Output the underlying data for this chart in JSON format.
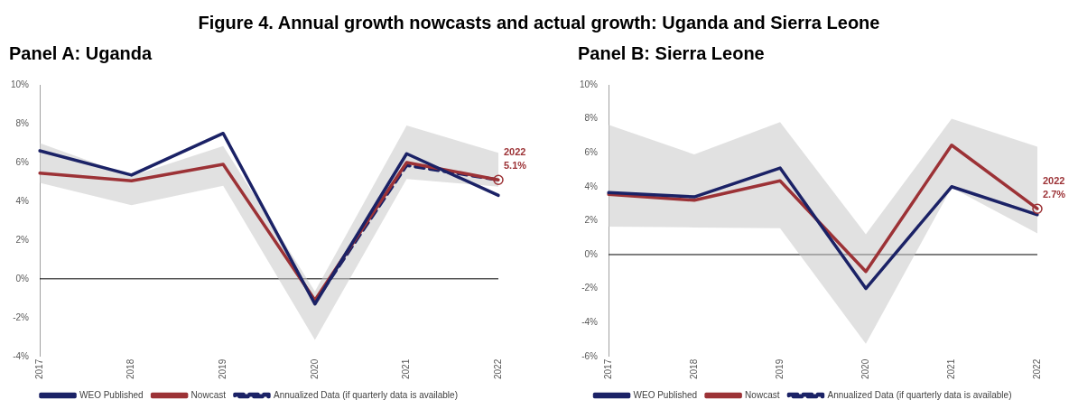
{
  "chart_data": [
    {
      "type": "line",
      "title": "Figure 4. Annual growth nowcasts and actual growth: Uganda and Sierra Leone",
      "subtitle": "Panel A: Uganda",
      "categories": [
        "2017",
        "2018",
        "2019",
        "2020",
        "2021",
        "2022"
      ],
      "series": [
        {
          "name": "WEO Published",
          "color": "#1b2266",
          "values": [
            6.6,
            5.35,
            7.5,
            -1.3,
            6.45,
            4.3
          ]
        },
        {
          "name": "Nowcast",
          "color": "#9c3236",
          "values": [
            5.45,
            5.05,
            5.9,
            -1.1,
            6.0,
            5.1
          ],
          "lower": [
            4.95,
            3.8,
            4.8,
            -3.15,
            5.15,
            4.75
          ],
          "upper": [
            7.0,
            5.3,
            6.85,
            -0.65,
            7.9,
            6.5
          ]
        },
        {
          "name": "Annualized Data (if quarterly data is available)",
          "color": "#1b2266",
          "line_style": "dashed",
          "values": [
            null,
            null,
            null,
            -1.2,
            5.85,
            5.1
          ]
        }
      ],
      "ylim": [
        -4,
        10
      ],
      "yticks": [
        {
          "value": -4,
          "label": "-4%"
        },
        {
          "value": -2,
          "label": "-2%"
        },
        {
          "value": 0,
          "label": "0%"
        },
        {
          "value": 2,
          "label": "2%"
        },
        {
          "value": 4,
          "label": "4%"
        },
        {
          "value": 6,
          "label": "6%"
        },
        {
          "value": 8,
          "label": "8%"
        },
        {
          "value": 10,
          "label": "10%"
        }
      ],
      "ref_lines": [
        {
          "axis": "y",
          "value": 0,
          "color": "#000000"
        }
      ],
      "annotations": [
        {
          "text": "2022\n5.1%",
          "x": "2022",
          "y": 5.1
        }
      ],
      "grid": false,
      "legend": "bottom",
      "marker": "none"
    },
    {
      "type": "line",
      "subtitle": "Panel B: Sierra Leone",
      "categories": [
        "2017",
        "2018",
        "2019",
        "2020",
        "2021",
        "2022"
      ],
      "series": [
        {
          "name": "WEO Published",
          "color": "#1b2266",
          "values": [
            3.65,
            3.4,
            5.1,
            -2.0,
            4.0,
            2.35
          ]
        },
        {
          "name": "Nowcast",
          "color": "#9c3236",
          "values": [
            3.55,
            3.2,
            4.35,
            -1.0,
            6.45,
            2.7
          ],
          "lower": [
            1.65,
            1.6,
            1.55,
            -5.25,
            3.95,
            1.25
          ],
          "upper": [
            7.65,
            5.9,
            7.8,
            1.2,
            8.0,
            6.35
          ]
        },
        {
          "name": "Annualized Data (if quarterly data is available)",
          "color": "#1b2266",
          "line_style": "dashed",
          "values": [
            null,
            null,
            null,
            null,
            null,
            null
          ]
        }
      ],
      "ylim": [
        -6,
        10
      ],
      "yticks": [
        {
          "value": -6,
          "label": "-6%"
        },
        {
          "value": -4,
          "label": "-4%"
        },
        {
          "value": -2,
          "label": "-2%"
        },
        {
          "value": 0,
          "label": "0%"
        },
        {
          "value": 2,
          "label": "2%"
        },
        {
          "value": 4,
          "label": "4%"
        },
        {
          "value": 6,
          "label": "6%"
        },
        {
          "value": 8,
          "label": "8%"
        },
        {
          "value": 10,
          "label": "10%"
        }
      ],
      "ref_lines": [
        {
          "axis": "y",
          "value": 0,
          "color": "#000000"
        }
      ],
      "annotations": [
        {
          "text": "2022\n2.7%",
          "x": "2022",
          "y": 2.7
        }
      ],
      "grid": false,
      "legend": "bottom",
      "marker": "none"
    }
  ]
}
